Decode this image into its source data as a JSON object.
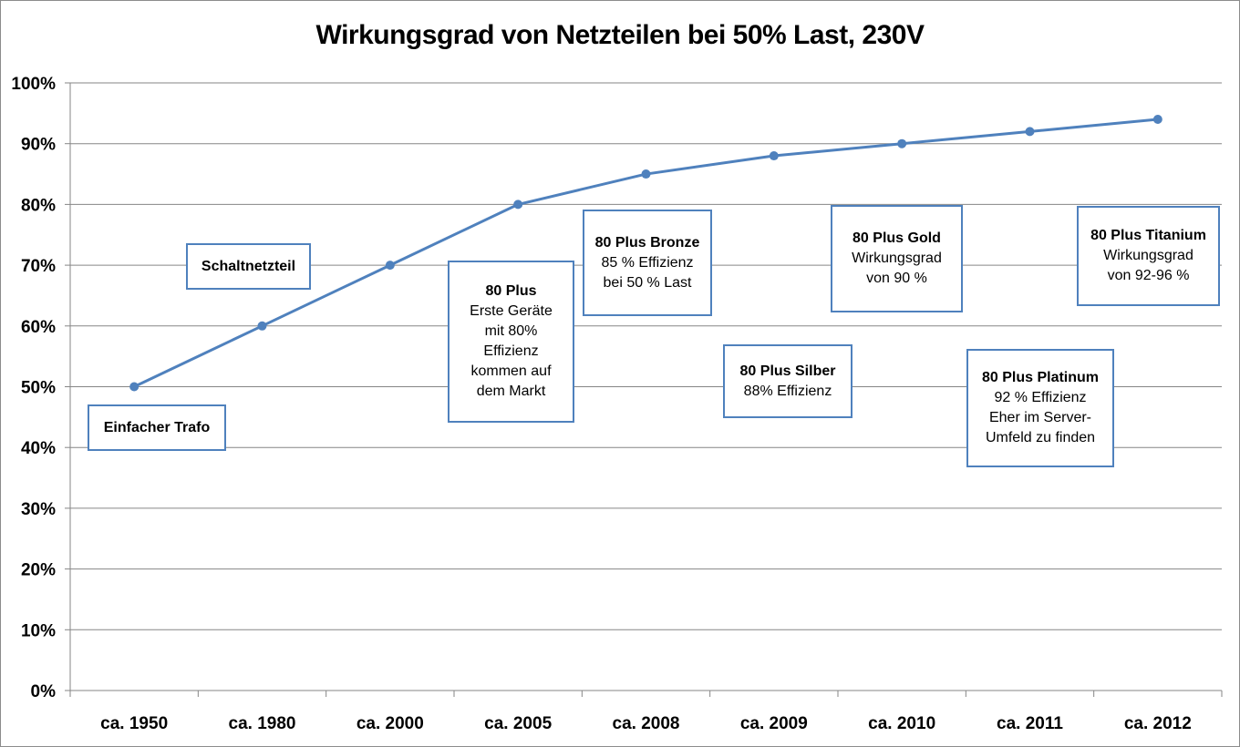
{
  "chart_data": {
    "type": "line",
    "title": "Wirkungsgrad von Netzteilen bei 50% Last, 230V",
    "xlabel": "",
    "ylabel": "",
    "categories": [
      "ca. 1950",
      "ca. 1980",
      "ca. 2000",
      "ca. 2005",
      "ca. 2008",
      "ca. 2009",
      "ca. 2010",
      "ca. 2011",
      "ca. 2012"
    ],
    "series": [
      {
        "values": [
          50,
          60,
          70,
          80,
          85,
          88,
          90,
          92,
          94
        ]
      }
    ],
    "ylim": [
      0,
      100
    ],
    "yticks": [
      "0%",
      "10%",
      "20%",
      "30%",
      "40%",
      "50%",
      "60%",
      "70%",
      "80%",
      "90%",
      "100%"
    ],
    "grid": "horizontal",
    "legend": "none",
    "colors": {
      "line": "#4f81bd",
      "grid": "#868686",
      "box_border": "#4f81bd"
    },
    "annotations": [
      {
        "id": "einfacher-trafo",
        "title": "Einfacher Trafo",
        "lines": []
      },
      {
        "id": "schaltnetzteil",
        "title": "Schaltnetzteil",
        "lines": []
      },
      {
        "id": "80-plus",
        "title": "80 Plus",
        "lines": [
          "Erste Geräte",
          "mit 80%",
          "Effizienz",
          "kommen auf",
          "dem Markt"
        ]
      },
      {
        "id": "80-plus-bronze",
        "title": "80 Plus Bronze",
        "lines": [
          "85 % Effizienz",
          "bei 50 % Last"
        ]
      },
      {
        "id": "80-plus-silber",
        "title": "80 Plus Silber",
        "lines": [
          "88% Effizienz"
        ]
      },
      {
        "id": "80-plus-gold",
        "title": "80 Plus Gold",
        "lines": [
          "Wirkungsgrad",
          "von 90 %"
        ]
      },
      {
        "id": "80-plus-platinum",
        "title": "80 Plus Platinum",
        "lines": [
          "92 % Effizienz",
          "Eher im Server-",
          "Umfeld zu finden"
        ]
      },
      {
        "id": "80-plus-titanium",
        "title": "80 Plus Titanium",
        "lines": [
          "Wirkungsgrad",
          "von 92-96 %"
        ]
      }
    ]
  }
}
